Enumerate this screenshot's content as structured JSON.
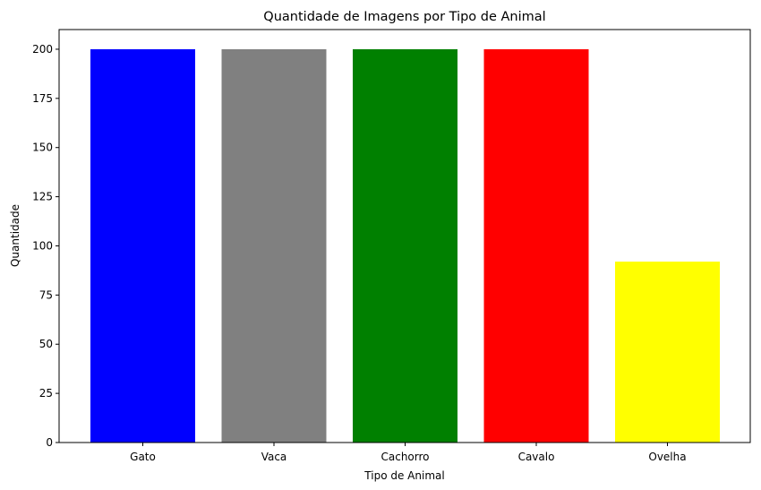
{
  "chart_data": {
    "type": "bar",
    "title": "Quantidade de Imagens por Tipo de Animal",
    "xlabel": "Tipo de Animal",
    "ylabel": "Quantidade",
    "categories": [
      "Gato",
      "Vaca",
      "Cachorro",
      "Cavalo",
      "Ovelha"
    ],
    "values": [
      200,
      200,
      200,
      200,
      92
    ],
    "colors": [
      "#0000ff",
      "#808080",
      "#008000",
      "#ff0000",
      "#ffff00"
    ],
    "ylim": [
      0,
      210
    ],
    "yticks": [
      0,
      25,
      50,
      75,
      100,
      125,
      150,
      175,
      200
    ],
    "grid": false,
    "legend": "none"
  }
}
